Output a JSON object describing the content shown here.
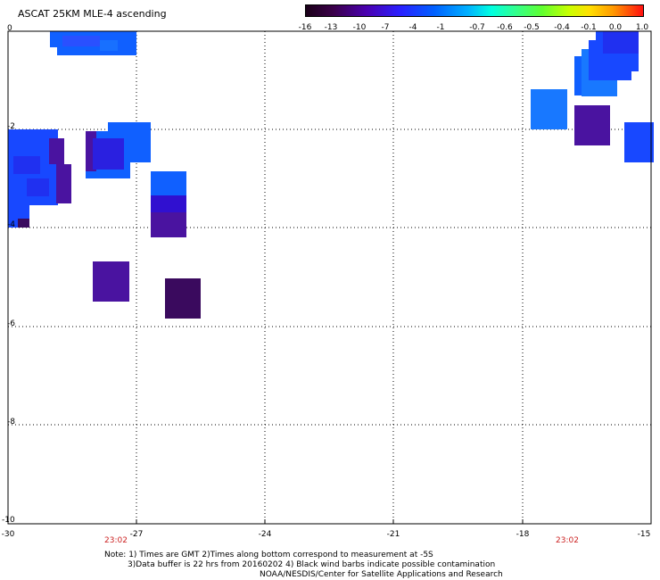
{
  "title": "ASCAT 25KM MLE-4 ascending",
  "colorbar": {
    "labels": [
      "-16",
      "-13",
      "-10",
      "-7",
      "-4",
      "-1",
      "-0.7",
      "-0.6",
      "-0.5",
      "-0.4",
      "-0.1",
      "0.0",
      "1.0"
    ]
  },
  "axes": {
    "x_ticks": [
      "-30",
      "-27",
      "-24",
      "-21",
      "-18",
      "-15"
    ],
    "y_ticks": [
      "0",
      "-2",
      "-4",
      "-6",
      "-8",
      "-10"
    ],
    "xlim": [
      -30,
      -15
    ],
    "ylim": [
      -10,
      0
    ]
  },
  "time_labels": [
    "23:02",
    "23:02"
  ],
  "notes": {
    "line1": "Note: 1) Times are GMT 2)Times along bottom correspond to measurement at -5S",
    "line2": "3)Data buffer is 22 hrs from 20160202 4) Black wind barbs indicate possible contamination",
    "line3": "NOAA/NESDIS/Center for Satellite Applications and Research"
  },
  "colors": {
    "deep_purple": "#3a0a5e",
    "purple": "#4a13a0",
    "indigo": "#3010d0",
    "blue": "#1848ff",
    "mid_blue": "#1060ff",
    "light_blue": "#1878ff",
    "time_red": "#cc2222"
  }
}
